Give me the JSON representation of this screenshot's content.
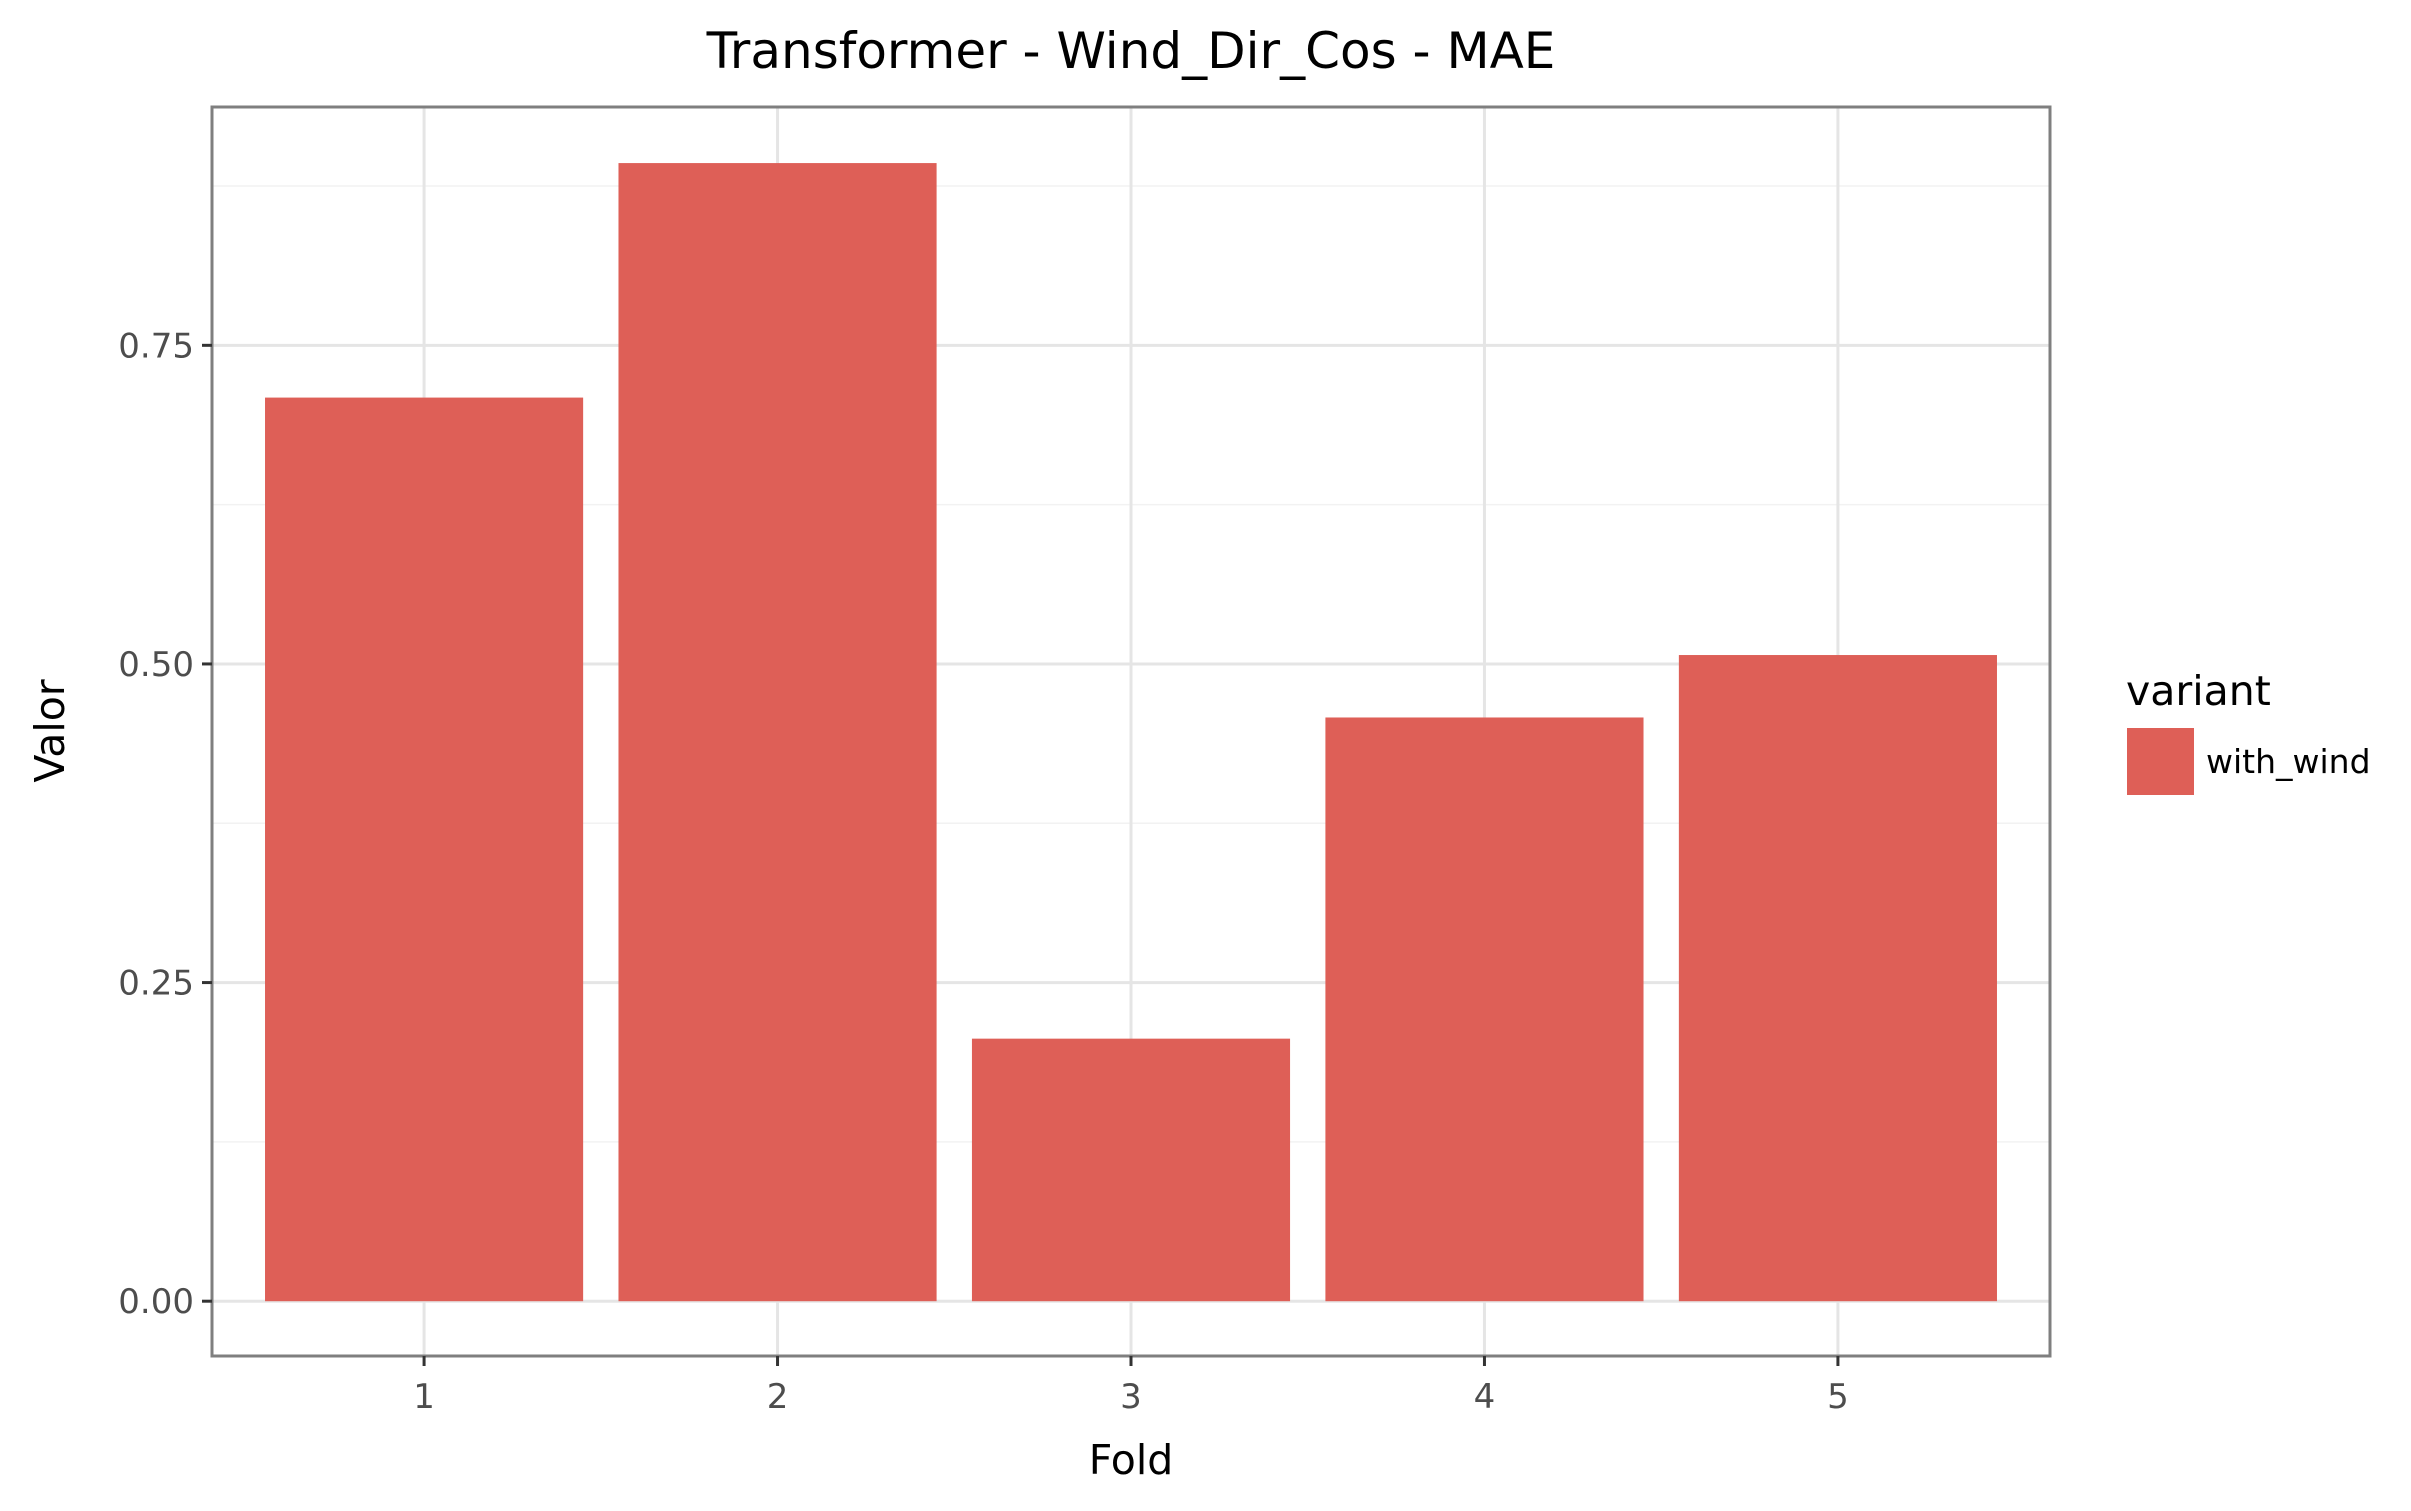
{
  "chart_data": {
    "type": "bar",
    "title": "Transformer - Wind_Dir_Cos - MAE",
    "xlabel": "Fold",
    "ylabel": "Valor",
    "categories": [
      "1",
      "2",
      "3",
      "4",
      "5"
    ],
    "series": [
      {
        "name": "with_wind",
        "values": [
          0.709,
          0.893,
          0.206,
          0.458,
          0.507
        ],
        "color": "#de5f57"
      }
    ],
    "ylim": [
      -0.043,
      0.937
    ],
    "yticks": [
      0.0,
      0.25,
      0.5,
      0.75
    ],
    "ytick_labels": [
      "0.00",
      "0.25",
      "0.50",
      "0.75"
    ],
    "grid": true,
    "legend": {
      "title": "variant",
      "position": "right"
    }
  }
}
